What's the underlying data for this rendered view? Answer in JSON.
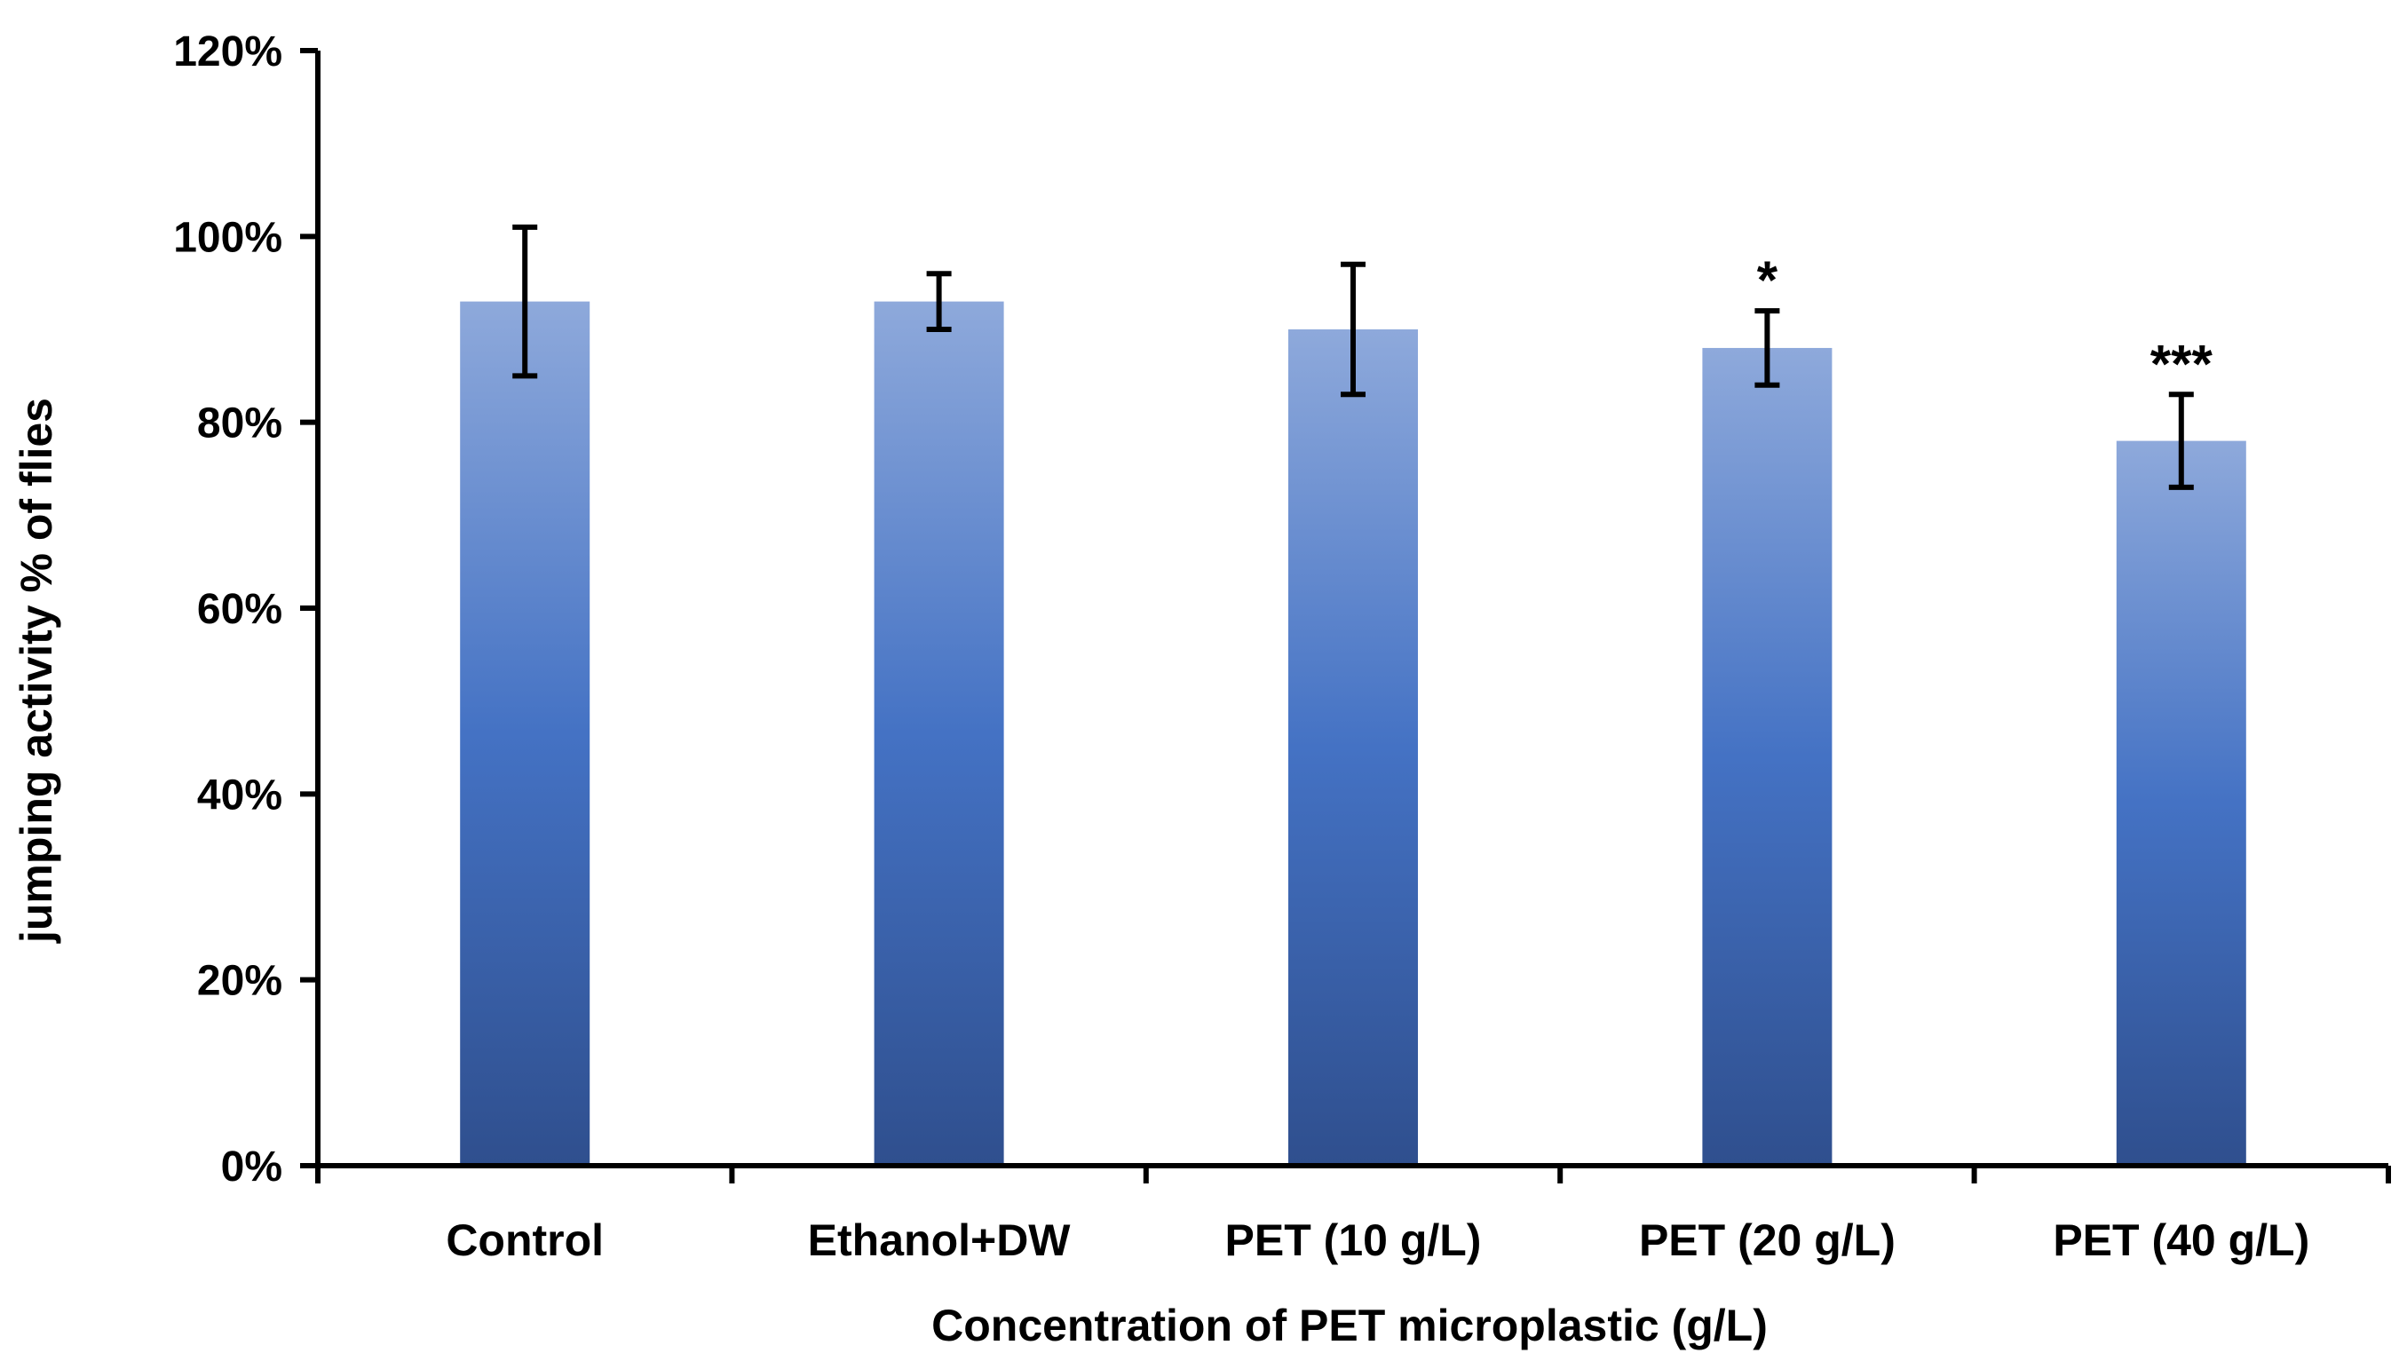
{
  "chart_data": {
    "type": "bar",
    "title": "",
    "xlabel": "Concentration of PET microplastic (g/L)",
    "ylabel": "jumping activity % of flies",
    "categories": [
      "Control",
      "Ethanol+DW",
      "PET (10 g/L)",
      "PET (20 g/L)",
      "PET (40 g/L)"
    ],
    "values": [
      93,
      93,
      90,
      88,
      78
    ],
    "error": [
      8,
      3,
      7,
      4,
      5
    ],
    "annotations": [
      "",
      "",
      "",
      "*",
      "***"
    ],
    "ylim": [
      0,
      120
    ],
    "yticks": [
      0,
      20,
      40,
      60,
      80,
      100,
      120
    ],
    "ytick_labels": [
      "0%",
      "20%",
      "40%",
      "60%",
      "80%",
      "100%",
      "120%"
    ],
    "grid": false,
    "colors": {
      "bar_top": "#8EA9DB",
      "bar_mid": "#4472C4",
      "bar_bottom": "#2F4F8E",
      "axis": "#000000"
    }
  }
}
